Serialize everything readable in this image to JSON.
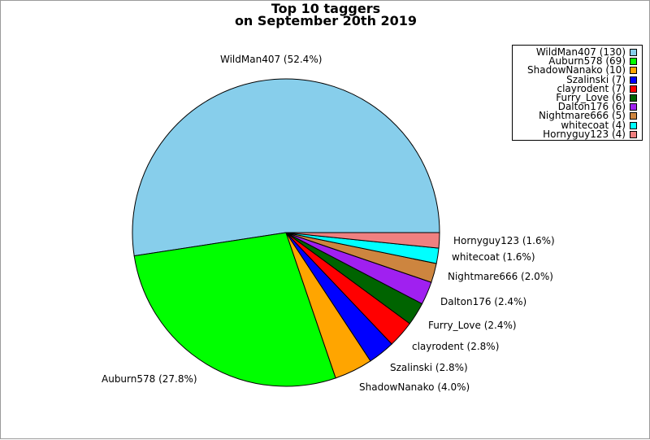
{
  "chart_data": {
    "type": "pie",
    "title_line1": "Top 10 taggers",
    "title_line2": "on September 20th 2019",
    "slices": [
      {
        "name": "WildMan407",
        "count": 130,
        "percent": 52.4,
        "color": "#87ceeb",
        "legend": "WildMan407 (130)",
        "label": "WildMan407 (52.4%)"
      },
      {
        "name": "Auburn578",
        "count": 69,
        "percent": 27.8,
        "color": "#00ff00",
        "legend": "Auburn578 (69)",
        "label": "Auburn578 (27.8%)"
      },
      {
        "name": "ShadowNanako",
        "count": 10,
        "percent": 4.0,
        "color": "#ffa500",
        "legend": "ShadowNanako (10)",
        "label": "ShadowNanako (4.0%)"
      },
      {
        "name": "Szalinski",
        "count": 7,
        "percent": 2.8,
        "color": "#0000ff",
        "legend": "Szalinski (7)",
        "label": "Szalinski (2.8%)"
      },
      {
        "name": "clayrodent",
        "count": 7,
        "percent": 2.8,
        "color": "#ff0000",
        "legend": "clayrodent (7)",
        "label": "clayrodent (2.8%)"
      },
      {
        "name": "Furry_Love",
        "count": 6,
        "percent": 2.4,
        "color": "#006400",
        "legend": "Furry_Love (6)",
        "label": "Furry_Love (2.4%)"
      },
      {
        "name": "Dalton176",
        "count": 6,
        "percent": 2.4,
        "color": "#a020f0",
        "legend": "Dalton176 (6)",
        "label": "Dalton176 (2.4%)"
      },
      {
        "name": "Nightmare666",
        "count": 5,
        "percent": 2.0,
        "color": "#cd853f",
        "legend": "Nightmare666 (5)",
        "label": "Nightmare666 (2.0%)"
      },
      {
        "name": "whitecoat",
        "count": 4,
        "percent": 1.6,
        "color": "#00ffff",
        "legend": "whitecoat (4)",
        "label": "whitecoat (1.6%)"
      },
      {
        "name": "Hornyguy123",
        "count": 4,
        "percent": 1.6,
        "color": "#f08080",
        "legend": "Hornyguy123 (4)",
        "label": "Hornyguy123 (1.6%)"
      }
    ]
  }
}
